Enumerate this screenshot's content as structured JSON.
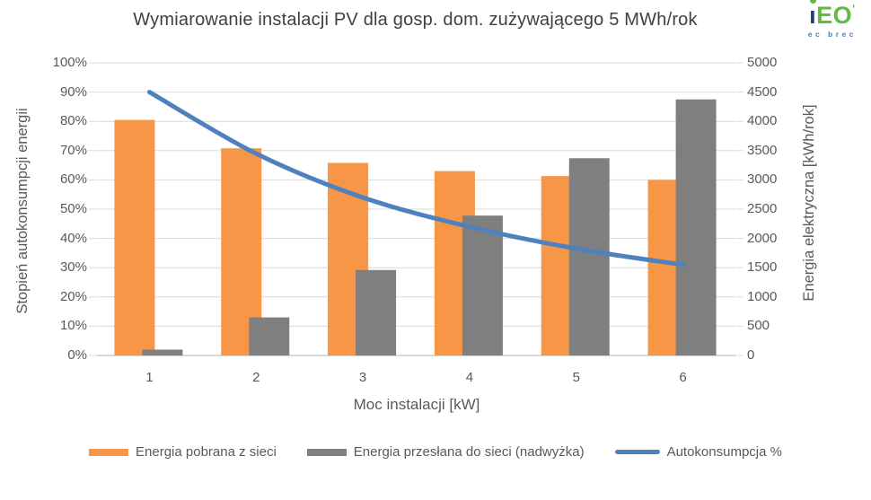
{
  "header": {
    "title": "Wymiarowanie instalacji PV dla gosp. dom. zużywającego 5 MWh/rok",
    "logo": {
      "i": "ı",
      "eo": "EO",
      "mark": "'",
      "sub": "ec brec"
    }
  },
  "chart_data": {
    "type": "bar",
    "title": "Wymiarowanie instalacji PV dla gosp. dom. zużywającego 5 MWh/rok",
    "categories": [
      "1",
      "2",
      "3",
      "4",
      "5",
      "6"
    ],
    "xlabel": "Moc instalacji [kW]",
    "left_axis": {
      "label": "Stopień autokonsumpcji energii",
      "min": 0,
      "max": 100,
      "ticks": [
        "0%",
        "10%",
        "20%",
        "30%",
        "40%",
        "50%",
        "60%",
        "70%",
        "80%",
        "90%",
        "100%"
      ]
    },
    "right_axis": {
      "label": "Energia elektryczna [kWh/rok]",
      "min": 0,
      "max": 5000,
      "ticks": [
        "0",
        "500",
        "1000",
        "1500",
        "2000",
        "2500",
        "3000",
        "3500",
        "4000",
        "4500",
        "5000"
      ]
    },
    "grid": true,
    "legend_position": "bottom",
    "series": [
      {
        "name": "Energia pobrana z sieci",
        "type": "bar",
        "axis": "right",
        "color": "#F79646",
        "values": [
          4025,
          3540,
          3290,
          3150,
          3065,
          3000
        ]
      },
      {
        "name": "Energia przesłana do sieci (nadwyżka)",
        "type": "bar",
        "axis": "right",
        "color": "#7F7F7F",
        "values": [
          100,
          650,
          1460,
          2390,
          3370,
          4375
        ]
      },
      {
        "name": "Autokonsumpcja %",
        "type": "line",
        "axis": "left",
        "color": "#4F81BD",
        "values": [
          90,
          69,
          54,
          44,
          36.5,
          31
        ]
      }
    ],
    "colors": {
      "gridline": "#D9D9D9",
      "axis_text": "#595959",
      "title_text": "#404040"
    }
  }
}
